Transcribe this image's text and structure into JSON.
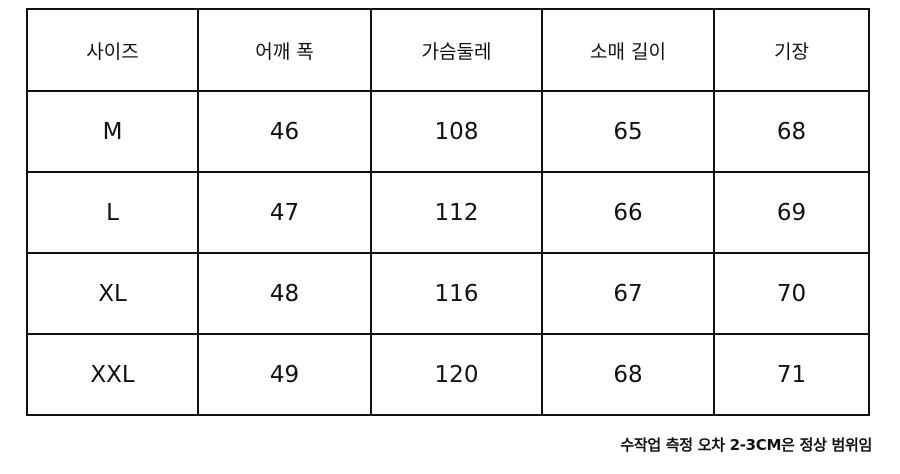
{
  "table": {
    "header": [
      "사이즈",
      "어깨 폭",
      "가슴둘레",
      "소매 길이",
      "기장"
    ],
    "rows": [
      [
        "M",
        46,
        108,
        65,
        68
      ],
      [
        "L",
        47,
        112,
        66,
        69
      ],
      [
        "XL",
        48,
        116,
        67,
        70
      ],
      [
        "XXL",
        49,
        120,
        68,
        71
      ]
    ]
  },
  "note": "수작업 측정 오차 2-3CM은 정상 범위임"
}
